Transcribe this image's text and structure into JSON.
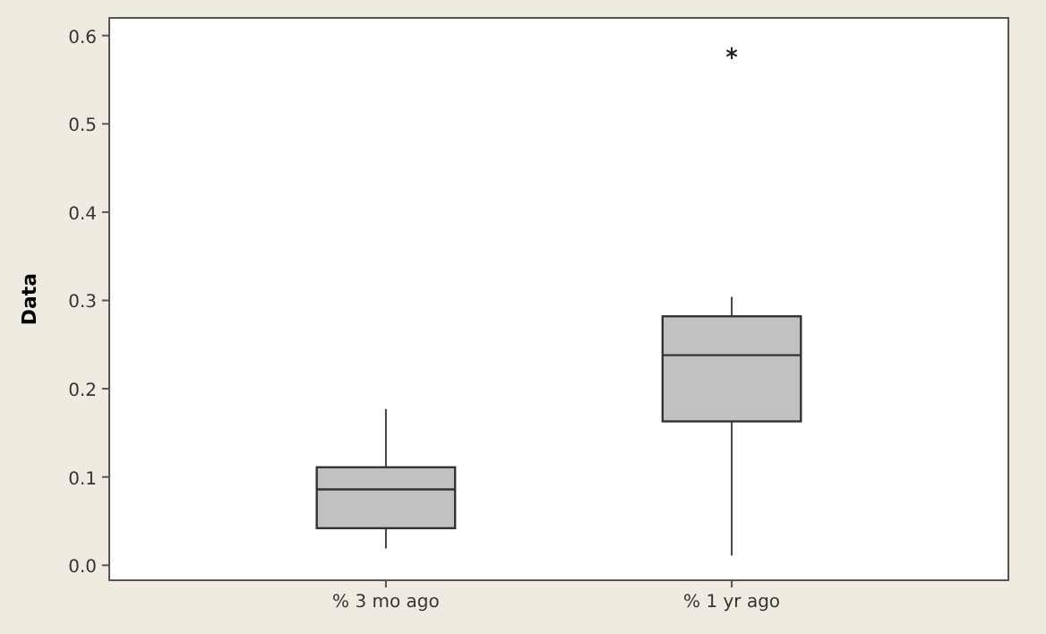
{
  "chart_data": {
    "type": "box",
    "ylabel": "Data",
    "categories": [
      "% 3 mo ago",
      "% 1 yr ago"
    ],
    "boxes": [
      {
        "low": 0.019,
        "q1": 0.042,
        "median": 0.086,
        "q3": 0.111,
        "high": 0.177
      },
      {
        "low": 0.011,
        "q1": 0.163,
        "median": 0.238,
        "q3": 0.282,
        "high": 0.304,
        "outliers": [
          0.58
        ]
      }
    ],
    "color": "#c0c1c3",
    "ylim": [
      -0.017,
      0.62
    ],
    "yticks": [
      {
        "value": 0,
        "label": "0.0"
      },
      {
        "value": 0.1,
        "label": "0.1"
      },
      {
        "value": 0.2,
        "label": "0.2"
      },
      {
        "value": 0.3,
        "label": "0.3"
      },
      {
        "value": 0.4,
        "label": "0.4"
      },
      {
        "value": 0.5,
        "label": "0.5"
      },
      {
        "value": 0.6,
        "label": "0.6"
      }
    ]
  }
}
